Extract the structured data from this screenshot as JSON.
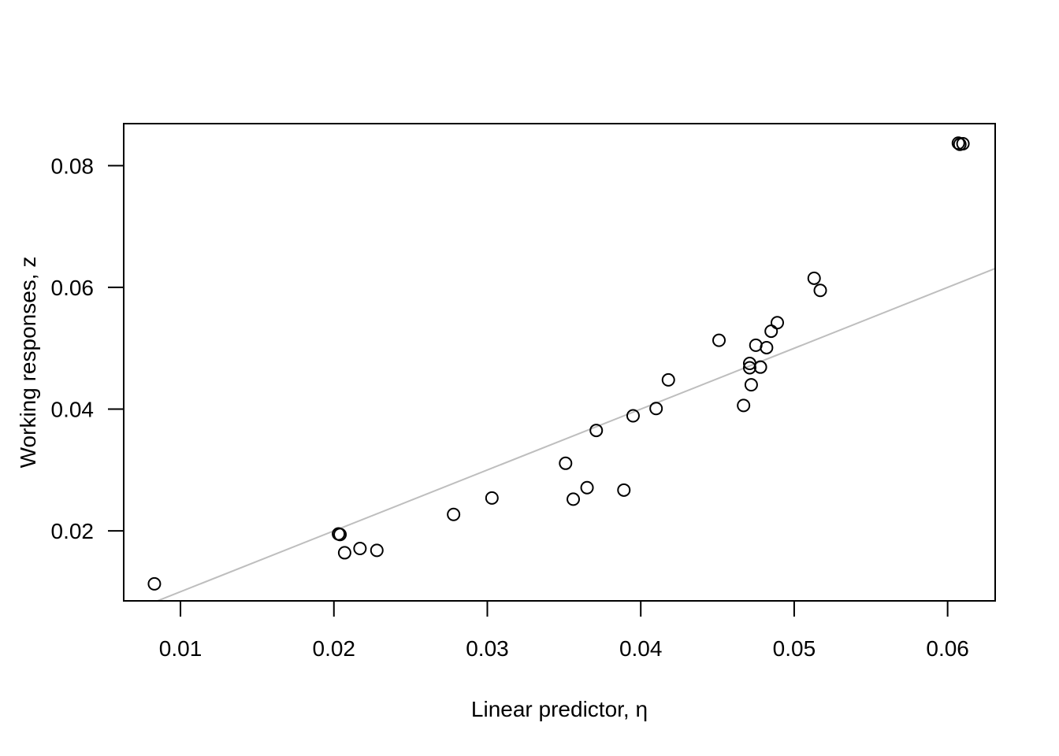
{
  "chart_data": {
    "type": "scatter",
    "title": "",
    "xlabel": "Linear predictor, η",
    "ylabel": "Working responses, z",
    "xlim": [
      0.0063,
      0.0631
    ],
    "ylim": [
      0.0085,
      0.0869
    ],
    "x_ticks": [
      {
        "value": 0.01,
        "label": "0.01"
      },
      {
        "value": 0.02,
        "label": "0.02"
      },
      {
        "value": 0.03,
        "label": "0.03"
      },
      {
        "value": 0.04,
        "label": "0.04"
      },
      {
        "value": 0.05,
        "label": "0.05"
      },
      {
        "value": 0.06,
        "label": "0.06"
      }
    ],
    "y_ticks": [
      {
        "value": 0.02,
        "label": "0.02"
      },
      {
        "value": 0.04,
        "label": "0.04"
      },
      {
        "value": 0.06,
        "label": "0.06"
      },
      {
        "value": 0.08,
        "label": "0.08"
      }
    ],
    "grid": false,
    "points": [
      {
        "x": 0.0083,
        "y": 0.0113
      },
      {
        "x": 0.0203,
        "y": 0.0195
      },
      {
        "x": 0.0204,
        "y": 0.0194
      },
      {
        "x": 0.0207,
        "y": 0.0164
      },
      {
        "x": 0.0217,
        "y": 0.0171
      },
      {
        "x": 0.0228,
        "y": 0.0168
      },
      {
        "x": 0.0278,
        "y": 0.0227
      },
      {
        "x": 0.0303,
        "y": 0.0254
      },
      {
        "x": 0.0351,
        "y": 0.0311
      },
      {
        "x": 0.0356,
        "y": 0.0252
      },
      {
        "x": 0.0365,
        "y": 0.0271
      },
      {
        "x": 0.0371,
        "y": 0.0365
      },
      {
        "x": 0.0389,
        "y": 0.0267
      },
      {
        "x": 0.0395,
        "y": 0.0389
      },
      {
        "x": 0.041,
        "y": 0.0401
      },
      {
        "x": 0.0418,
        "y": 0.0448
      },
      {
        "x": 0.0451,
        "y": 0.0513
      },
      {
        "x": 0.0467,
        "y": 0.0406
      },
      {
        "x": 0.0471,
        "y": 0.0475
      },
      {
        "x": 0.0471,
        "y": 0.0468
      },
      {
        "x": 0.0472,
        "y": 0.044
      },
      {
        "x": 0.0475,
        "y": 0.0505
      },
      {
        "x": 0.0478,
        "y": 0.0469
      },
      {
        "x": 0.0482,
        "y": 0.0501
      },
      {
        "x": 0.0485,
        "y": 0.0528
      },
      {
        "x": 0.0489,
        "y": 0.0542
      },
      {
        "x": 0.0513,
        "y": 0.0615
      },
      {
        "x": 0.0517,
        "y": 0.0595
      },
      {
        "x": 0.0607,
        "y": 0.0837
      },
      {
        "x": 0.0608,
        "y": 0.0835
      },
      {
        "x": 0.061,
        "y": 0.0836
      }
    ],
    "reference_line": {
      "intercept": 0,
      "slope": 1,
      "color": "#bebebe"
    },
    "point_style": {
      "shape": "open-circle",
      "color": "#000000"
    }
  }
}
